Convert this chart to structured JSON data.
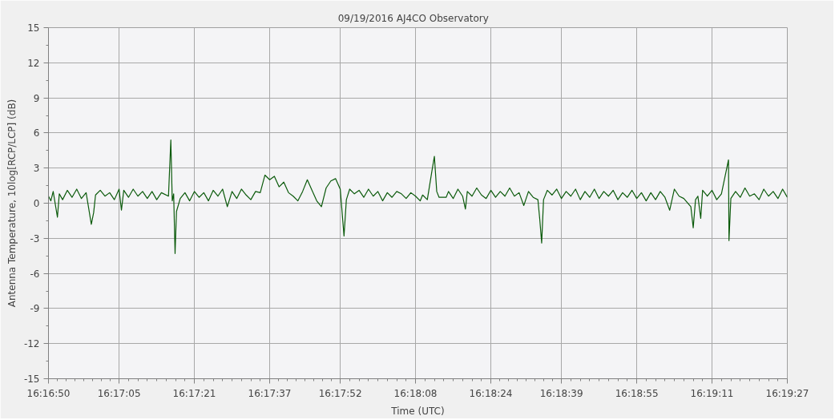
{
  "chart_data": {
    "type": "line",
    "title": "09/19/2016    AJ4CO Observatory",
    "xlabel": "Time (UTC)",
    "ylabel": "Antenna Temperature, 10log[RCP/LCP] (dB)",
    "x": [
      16.280556,
      16.280695,
      16.280834,
      16.281084,
      16.281195,
      16.281389,
      16.281667,
      16.281945,
      16.282223,
      16.2825,
      16.282778,
      16.283084,
      16.283223,
      16.283334,
      16.283612,
      16.283889,
      16.284167,
      16.284445,
      16.284723,
      16.284862,
      16.285,
      16.285278,
      16.285556,
      16.285834,
      16.286112,
      16.286389,
      16.286667,
      16.286945,
      16.287223,
      16.287639,
      16.287778,
      16.287862,
      16.287945,
      16.288028,
      16.288112,
      16.288334,
      16.288612,
      16.288889,
      16.289167,
      16.289445,
      16.289723,
      16.29,
      16.290278,
      16.290556,
      16.290834,
      16.291112,
      16.291389,
      16.291667,
      16.291945,
      16.292223,
      16.2925,
      16.292778,
      16.293056,
      16.293334,
      16.293612,
      16.293889,
      16.294167,
      16.294445,
      16.294723,
      16.295,
      16.295278,
      16.295556,
      16.295834,
      16.296112,
      16.296389,
      16.296667,
      16.296945,
      16.297223,
      16.2975,
      16.297778,
      16.298,
      16.298139,
      16.298334,
      16.298612,
      16.298889,
      16.299167,
      16.299445,
      16.299723,
      16.3,
      16.300278,
      16.300556,
      16.300834,
      16.301112,
      16.301389,
      16.301667,
      16.301945,
      16.302223,
      16.3025,
      16.302639,
      16.302917,
      16.303195,
      16.303334,
      16.303473,
      16.303612,
      16.304028,
      16.304167,
      16.304445,
      16.304723,
      16.305,
      16.305167,
      16.305278,
      16.305556,
      16.305834,
      16.306112,
      16.306389,
      16.306667,
      16.306945,
      16.307223,
      16.3075,
      16.307778,
      16.308056,
      16.308334,
      16.308612,
      16.308889,
      16.309167,
      16.309445,
      16.309556,
      16.309667,
      16.309778,
      16.31,
      16.310278,
      16.310556,
      16.310834,
      16.311112,
      16.311389,
      16.311667,
      16.311945,
      16.312223,
      16.3125,
      16.312778,
      16.313056,
      16.313334,
      16.313612,
      16.313889,
      16.314167,
      16.314445,
      16.314723,
      16.315,
      16.315278,
      16.315556,
      16.315834,
      16.316112,
      16.316389,
      16.316667,
      16.316945,
      16.317223,
      16.3175,
      16.317778,
      16.318056,
      16.318473,
      16.318612,
      16.31875,
      16.318889,
      16.319056,
      16.319167,
      16.319445,
      16.319723,
      16.32,
      16.320278,
      16.320695,
      16.320723,
      16.320834,
      16.321112,
      16.321389,
      16.321667,
      16.321945,
      16.322223,
      16.3225,
      16.322778,
      16.323056,
      16.323334,
      16.323612,
      16.323889,
      16.324167
    ],
    "series": [
      {
        "color": "#0b5a0b",
        "values": [
          0.6,
          0.2,
          1.0,
          -1.2,
          0.8,
          0.3,
          1.1,
          0.5,
          1.2,
          0.4,
          0.9,
          -1.8,
          -0.8,
          0.7,
          1.1,
          0.6,
          0.9,
          0.3,
          1.2,
          -0.6,
          1.1,
          0.5,
          1.2,
          0.6,
          1.0,
          0.4,
          1.0,
          0.3,
          0.9,
          0.6,
          5.4,
          0.2,
          0.8,
          -4.3,
          -0.7,
          0.4,
          0.9,
          0.2,
          1.0,
          0.5,
          0.9,
          0.2,
          1.1,
          0.6,
          1.2,
          -0.3,
          1.0,
          0.4,
          1.2,
          0.7,
          0.3,
          1.0,
          0.9,
          2.4,
          2.0,
          2.3,
          1.4,
          1.8,
          0.9,
          0.6,
          0.2,
          1.0,
          2.0,
          1.1,
          0.2,
          -0.3,
          1.3,
          1.9,
          2.1,
          1.2,
          -2.8,
          0.3,
          1.2,
          0.8,
          1.1,
          0.5,
          1.2,
          0.6,
          1.0,
          0.2,
          0.9,
          0.5,
          1.0,
          0.8,
          0.4,
          0.9,
          0.6,
          0.2,
          0.7,
          0.3,
          2.8,
          4.0,
          1.0,
          0.5,
          0.5,
          1.0,
          0.4,
          1.2,
          0.6,
          -0.5,
          1.0,
          0.6,
          1.3,
          0.7,
          0.4,
          1.1,
          0.5,
          1.0,
          0.6,
          1.3,
          0.6,
          0.9,
          -0.2,
          1.0,
          0.5,
          0.3,
          -1.4,
          -3.4,
          0.3,
          1.1,
          0.7,
          1.2,
          0.4,
          1.0,
          0.6,
          1.2,
          0.3,
          1.0,
          0.5,
          1.2,
          0.4,
          1.0,
          0.6,
          1.1,
          0.3,
          0.9,
          0.5,
          1.1,
          0.4,
          0.9,
          0.2,
          0.9,
          0.3,
          1.0,
          0.5,
          -0.6,
          1.2,
          0.6,
          0.4,
          -0.3,
          -2.1,
          0.3,
          0.6,
          -1.3,
          1.1,
          0.6,
          1.1,
          0.3,
          0.8,
          3.7,
          -3.2,
          0.4,
          1.0,
          0.5,
          1.3,
          0.6,
          0.8,
          0.3,
          1.2,
          0.6,
          1.0,
          0.4,
          1.2,
          0.5
        ]
      }
    ],
    "xlim": [
      16.280556,
      16.324167
    ],
    "xticks": [
      {
        "value": 16.280556,
        "label": "16:16:50"
      },
      {
        "value": 16.284722,
        "label": "16:17:05"
      },
      {
        "value": 16.289167,
        "label": "16:17:21"
      },
      {
        "value": 16.293611,
        "label": "16:17:37"
      },
      {
        "value": 16.297778,
        "label": "16:17:52"
      },
      {
        "value": 16.302222,
        "label": "16:18:08"
      },
      {
        "value": 16.306667,
        "label": "16:18:24"
      },
      {
        "value": 16.310833,
        "label": "16:18:39"
      },
      {
        "value": 16.315278,
        "label": "16:18:55"
      },
      {
        "value": 16.319722,
        "label": "16:19:11"
      },
      {
        "value": 16.324167,
        "label": "16:19:27"
      }
    ],
    "ylim": [
      -15,
      15
    ],
    "yticks": [
      -15,
      -12,
      -9,
      -6,
      -3,
      0,
      3,
      6,
      9,
      12,
      15
    ],
    "grid": true,
    "marker": "none",
    "line_style": "solid"
  }
}
